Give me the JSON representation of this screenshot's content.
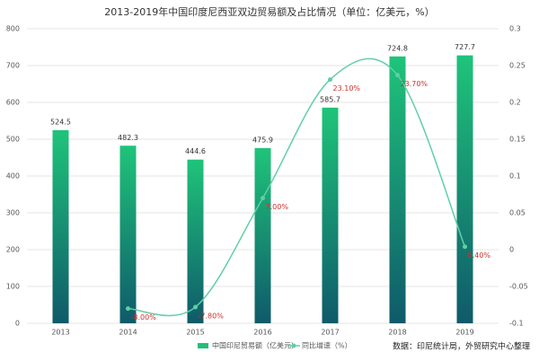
{
  "chart_data": {
    "type": "bar-line",
    "title": "2013-2019年中国印度尼西亚双边贸易额及占比情况（单位：亿美元，%）",
    "categories": [
      "2013",
      "2014",
      "2015",
      "2016",
      "2017",
      "2018",
      "2019"
    ],
    "series": [
      {
        "name": "中国印尼贸易额（亿美元）",
        "type": "bar",
        "color": "#1fbf7a",
        "values": [
          524.5,
          482.3,
          444.6,
          475.9,
          585.7,
          724.8,
          727.7
        ]
      },
      {
        "name": "同比增速（%）",
        "type": "line",
        "axis": "y2",
        "color": "#5fcfa6",
        "values": [
          null,
          -0.08,
          -0.078,
          0.07,
          0.231,
          0.237,
          0.004
        ],
        "value_labels": [
          null,
          "-8.00%",
          "-7.80%",
          "7.00%",
          "23.10%",
          "23.70%",
          "0.40%"
        ]
      }
    ],
    "ylim": [
      0,
      800
    ],
    "yticks": [
      0,
      100,
      200,
      300,
      400,
      500,
      600,
      700,
      800
    ],
    "y2lim": [
      -0.1,
      0.3
    ],
    "y2ticks": [
      -0.1,
      -0.05,
      0,
      0.05,
      0.1,
      0.15,
      0.2,
      0.25,
      0.3
    ],
    "grid": true,
    "source": "数据：印尼统计局，外贸研究中心整理"
  }
}
